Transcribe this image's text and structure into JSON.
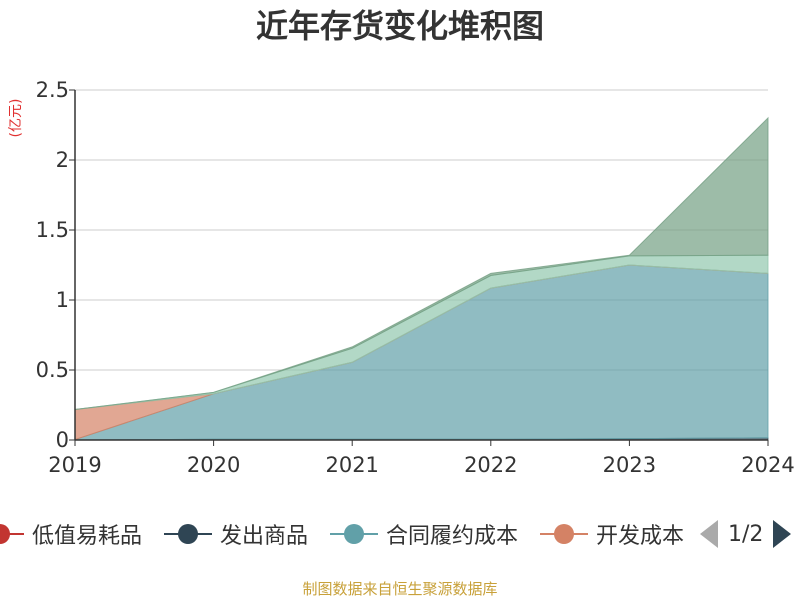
{
  "chart_data": {
    "type": "area",
    "stacked": true,
    "title": "近年存货变化堆积图",
    "ylabel": "(亿元)",
    "xlabel": "",
    "categories": [
      "2019",
      "2020",
      "2021",
      "2022",
      "2023",
      "2024"
    ],
    "yticks": [
      "0",
      "0.5",
      "1",
      "1.5",
      "2",
      "2.5"
    ],
    "ylim": [
      0,
      2.5
    ],
    "grid": true,
    "legend_position": "bottom",
    "series": [
      {
        "name": "低值易耗品",
        "color": "#c23531",
        "values": [
          0,
          0,
          0,
          0,
          0,
          0
        ]
      },
      {
        "name": "发出商品",
        "color": "#2f4554",
        "values": [
          0,
          0.005,
          0.005,
          0.005,
          0.01,
          0.015
        ]
      },
      {
        "name": "合同履约成本",
        "color": "#61a0a8",
        "values": [
          0.003,
          0.325,
          0.55,
          1.08,
          1.24,
          1.175
        ]
      },
      {
        "name": "开发成本",
        "color": "#d48265",
        "values": [
          0.215,
          0,
          0,
          0,
          0,
          0
        ]
      },
      {
        "name": "",
        "color": "#91c7ae",
        "values": [
          0,
          0.01,
          0.1,
          0.09,
          0.065,
          0.13
        ]
      },
      {
        "name": "",
        "color": "#749f83",
        "values": [
          0,
          0,
          0.01,
          0.015,
          0.005,
          0.98
        ]
      }
    ]
  },
  "legend": {
    "items": [
      {
        "label": "低值易耗品",
        "color": "#c23531"
      },
      {
        "label": "发出商品",
        "color": "#2f4554"
      },
      {
        "label": "合同履约成本",
        "color": "#61a0a8"
      },
      {
        "label": "开发成本",
        "color": "#d48265"
      }
    ],
    "page_indicator": "1/2"
  },
  "footer": {
    "source": "制图数据来自恒生聚源数据库"
  }
}
